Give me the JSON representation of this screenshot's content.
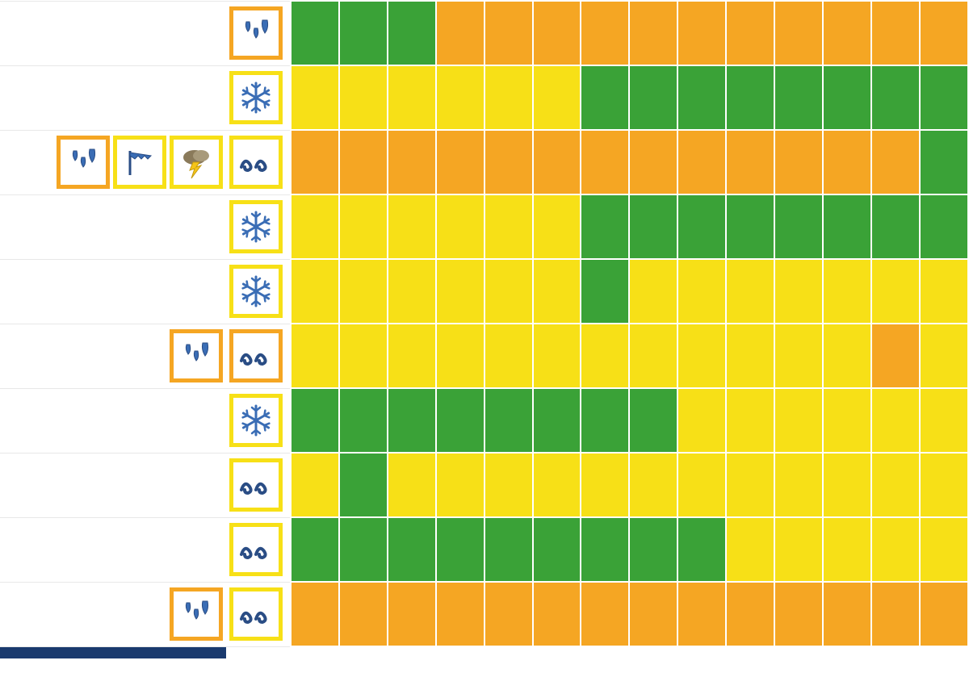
{
  "colors": {
    "green": "#3aa237",
    "yellow": "#f7e017",
    "orange": "#f5a623",
    "border_orange": "#f5a623",
    "border_yellow": "#f7e017",
    "icon_blue": "#3a6db5",
    "icon_blue_dark": "#2a4d85",
    "white": "#ffffff",
    "footer_blue": "#1a3a6e"
  },
  "icon_types": {
    "rain": "rain-icon",
    "snow": "snow-icon",
    "wind": "wind-icon",
    "storm": "storm-icon",
    "wave": "wave-icon"
  },
  "rows": [
    {
      "label_icons": [],
      "main_icon": {
        "type": "rain",
        "border": "orange"
      },
      "cells": [
        "green",
        "green",
        "green",
        "orange",
        "orange",
        "orange",
        "orange",
        "orange",
        "orange",
        "orange",
        "orange",
        "orange",
        "orange",
        "orange"
      ]
    },
    {
      "label_icons": [],
      "main_icon": {
        "type": "snow",
        "border": "yellow"
      },
      "cells": [
        "yellow",
        "yellow",
        "yellow",
        "yellow",
        "yellow",
        "yellow",
        "green",
        "green",
        "green",
        "green",
        "green",
        "green",
        "green",
        "green"
      ]
    },
    {
      "label_icons": [
        {
          "type": "rain",
          "border": "orange"
        },
        {
          "type": "wind",
          "border": "yellow"
        },
        {
          "type": "storm",
          "border": "yellow"
        }
      ],
      "main_icon": {
        "type": "wave",
        "border": "yellow"
      },
      "cells": [
        "orange",
        "orange",
        "orange",
        "orange",
        "orange",
        "orange",
        "orange",
        "orange",
        "orange",
        "orange",
        "orange",
        "orange",
        "orange",
        "green"
      ]
    },
    {
      "label_icons": [],
      "main_icon": {
        "type": "snow",
        "border": "yellow"
      },
      "cells": [
        "yellow",
        "yellow",
        "yellow",
        "yellow",
        "yellow",
        "yellow",
        "green",
        "green",
        "green",
        "green",
        "green",
        "green",
        "green",
        "green"
      ]
    },
    {
      "label_icons": [],
      "main_icon": {
        "type": "snow",
        "border": "yellow"
      },
      "cells": [
        "yellow",
        "yellow",
        "yellow",
        "yellow",
        "yellow",
        "yellow",
        "green",
        "yellow",
        "yellow",
        "yellow",
        "yellow",
        "yellow",
        "yellow",
        "yellow"
      ]
    },
    {
      "label_icons": [
        {
          "type": "rain",
          "border": "orange"
        }
      ],
      "main_icon": {
        "type": "wave",
        "border": "orange"
      },
      "cells": [
        "yellow",
        "yellow",
        "yellow",
        "yellow",
        "yellow",
        "yellow",
        "yellow",
        "yellow",
        "yellow",
        "yellow",
        "yellow",
        "yellow",
        "orange",
        "yellow"
      ]
    },
    {
      "label_icons": [],
      "main_icon": {
        "type": "snow",
        "border": "yellow"
      },
      "cells": [
        "green",
        "green",
        "green",
        "green",
        "green",
        "green",
        "green",
        "green",
        "yellow",
        "yellow",
        "yellow",
        "yellow",
        "yellow",
        "yellow"
      ]
    },
    {
      "label_icons": [],
      "main_icon": {
        "type": "wave",
        "border": "yellow"
      },
      "cells": [
        "yellow",
        "green",
        "yellow",
        "yellow",
        "yellow",
        "yellow",
        "yellow",
        "yellow",
        "yellow",
        "yellow",
        "yellow",
        "yellow",
        "yellow",
        "yellow"
      ]
    },
    {
      "label_icons": [],
      "main_icon": {
        "type": "wave",
        "border": "yellow"
      },
      "cells": [
        "green",
        "green",
        "green",
        "green",
        "green",
        "green",
        "green",
        "green",
        "green",
        "yellow",
        "yellow",
        "yellow",
        "yellow",
        "yellow"
      ]
    },
    {
      "label_icons": [
        {
          "type": "rain",
          "border": "orange"
        }
      ],
      "main_icon": {
        "type": "wave",
        "border": "yellow"
      },
      "cells": [
        "orange",
        "orange",
        "orange",
        "orange",
        "orange",
        "orange",
        "orange",
        "orange",
        "orange",
        "orange",
        "orange",
        "orange",
        "orange",
        "orange"
      ]
    }
  ]
}
